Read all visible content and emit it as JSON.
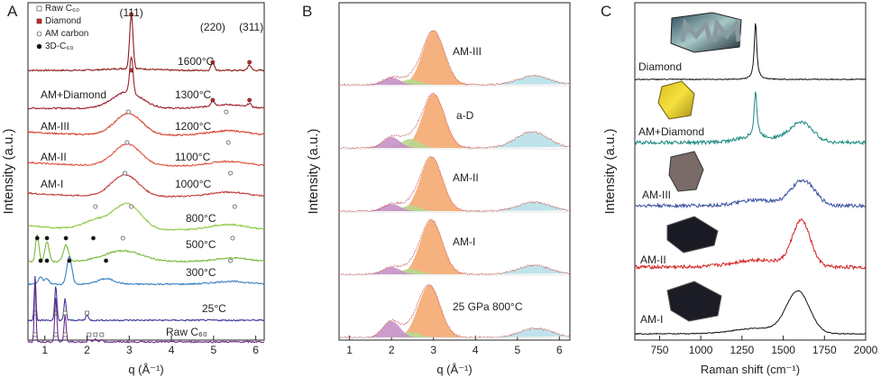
{
  "chart_data": [
    {
      "panel": "A",
      "type": "line",
      "xlabel": "q (Å⁻¹)",
      "ylabel": "Intensity (a.u.)",
      "xlim": [
        0.6,
        6.2
      ],
      "xticks": [
        1,
        2,
        3,
        4,
        5,
        6
      ],
      "legend": {
        "placement": "top-left",
        "entries": [
          "Raw C₆₀",
          "Diamond",
          "AM carbon",
          "3D-C₆₀"
        ]
      },
      "peak_labels": [
        {
          "label": "(111)",
          "q": 3.05
        },
        {
          "label": "(220)",
          "q": 4.98
        },
        {
          "label": "(311)",
          "q": 5.85
        }
      ],
      "series": [
        {
          "name": "1600°C",
          "color": "#8b1a1a",
          "kind": "diamond",
          "peaks": [
            3.05,
            4.98,
            5.85
          ]
        },
        {
          "name": "1300°C",
          "sample": "AM+Diamond",
          "color": "#9e1c2c",
          "kind": "mixed",
          "peaks": [
            3.05,
            4.98,
            5.85
          ]
        },
        {
          "name": "1200°C",
          "sample": "AM-III",
          "color": "#d8402a",
          "kind": "amorphous",
          "peaks": [
            2.98,
            5.3
          ]
        },
        {
          "name": "1100°C",
          "sample": "AM-II",
          "color": "#e0503c",
          "kind": "amorphous",
          "peaks": [
            2.95,
            5.35
          ]
        },
        {
          "name": "1000°C",
          "sample": "AM-I",
          "color": "#c03a3a",
          "kind": "amorphous",
          "peaks": [
            2.9,
            5.4
          ]
        },
        {
          "name": "800°C",
          "color": "#8cc63f",
          "kind": "amorphous",
          "peaks": [
            2.2,
            3.05,
            5.5
          ]
        },
        {
          "name": "500°C",
          "color": "#7ab83a",
          "kind": "3d-c60",
          "peaks": [
            0.82,
            1.05,
            1.5,
            2.15,
            2.85,
            5.45
          ]
        },
        {
          "name": "300°C",
          "color": "#3a80c0",
          "kind": "3d-c60",
          "peaks": [
            0.9,
            1.05,
            1.58,
            2.45,
            5.4
          ]
        },
        {
          "name": "25°C",
          "color": "#3b3b9a",
          "kind": "c60",
          "peaks": [
            0.77,
            1.26,
            1.48,
            2.0
          ]
        },
        {
          "name": "Raw C₆₀",
          "color": "#6a2a8a",
          "kind": "c60",
          "peaks": [
            0.77,
            1.26,
            1.48,
            2.05,
            2.2,
            2.35
          ]
        }
      ]
    },
    {
      "panel": "B",
      "type": "area",
      "xlabel": "q (Å⁻¹)",
      "ylabel": "Intensity (a.u.)",
      "xlim": [
        0.75,
        6.25
      ],
      "xticks": [
        1,
        2,
        3,
        4,
        5,
        6
      ],
      "series": [
        {
          "name": "AM-III",
          "main_peak": 3.0,
          "second_peak": 5.4
        },
        {
          "name": "a-D",
          "main_peak": 3.0,
          "second_peak": 5.35
        },
        {
          "name": "AM-II",
          "main_peak": 2.95,
          "second_peak": 5.4
        },
        {
          "name": "AM-I",
          "main_peak": 2.95,
          "second_peak": 5.4
        },
        {
          "name": "25 GPa 800°C",
          "main_peak": 2.9,
          "second_peak": 5.45
        }
      ]
    },
    {
      "panel": "C",
      "type": "line",
      "xlabel": "Raman shift (cm⁻¹)",
      "ylabel": "Intensity (a.u.)",
      "xlim": [
        600,
        2000
      ],
      "xticks": [
        750,
        1000,
        1250,
        1500,
        1750,
        2000
      ],
      "series": [
        {
          "name": "Diamond",
          "color": "#111111",
          "peaks": [
            1332
          ]
        },
        {
          "name": "AM+Diamond",
          "color": "#1a8a80",
          "peaks": [
            1332,
            1600
          ]
        },
        {
          "name": "AM-III",
          "color": "#3a50a0",
          "peaks": [
            1620
          ]
        },
        {
          "name": "AM-II",
          "color": "#d42020",
          "peaks": [
            1600
          ]
        },
        {
          "name": "AM-I",
          "color": "#111111",
          "peaks": [
            1590
          ]
        }
      ]
    }
  ],
  "panel_letters": [
    "A",
    "B",
    "C"
  ]
}
